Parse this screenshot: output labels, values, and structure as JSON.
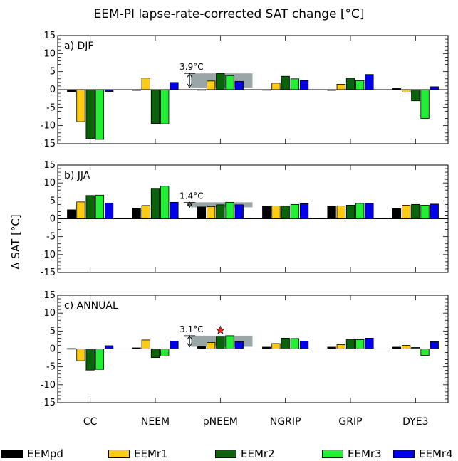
{
  "title": "EEM-PI lapse-rate-corrected SAT change [°C]",
  "ylabel": "Δ SAT [°C]",
  "colors": {
    "EEMpd": "#000000",
    "EEMr1": "#ffcc11",
    "EEMr2": "#0a620a",
    "EEMr3": "#22ee33",
    "EEMr4": "#0000ee",
    "shade": "#9aa5a8",
    "star": "#ee2222"
  },
  "legend": [
    {
      "name": "EEMpd",
      "color": "#000000"
    },
    {
      "name": "EEMr1",
      "color": "#ffcc11"
    },
    {
      "name": "EEMr2",
      "color": "#0a620a"
    },
    {
      "name": "EEMr3",
      "color": "#22ee33"
    },
    {
      "name": "EEMr4",
      "color": "#0000ee"
    }
  ],
  "chart_data": [
    {
      "type": "bar",
      "panel_label": "a) DJF",
      "categories": [
        "CC",
        "NEEM",
        "pNEEM",
        "NGRIP",
        "GRIP",
        "DYE3"
      ],
      "ylim": [
        -15,
        15
      ],
      "yticks": [
        -15,
        -10,
        -5,
        0,
        5,
        10,
        15
      ],
      "series": [
        {
          "name": "EEMpd",
          "values": [
            -0.6,
            -0.2,
            0.0,
            -0.1,
            -0.2,
            0.3
          ]
        },
        {
          "name": "EEMr1",
          "values": [
            -8.9,
            3.2,
            2.4,
            1.8,
            1.5,
            -0.7
          ]
        },
        {
          "name": "EEMr2",
          "values": [
            -13.6,
            -9.4,
            4.5,
            3.7,
            3.2,
            -3.1
          ]
        },
        {
          "name": "EEMr3",
          "values": [
            -13.8,
            -9.5,
            3.9,
            3.0,
            2.5,
            -8.0
          ]
        },
        {
          "name": "EEMr4",
          "values": [
            -0.5,
            2.0,
            2.3,
            2.5,
            4.2,
            0.8
          ]
        }
      ],
      "annotation": {
        "text": "3.9°C",
        "category": "pNEEM",
        "value": 3.9,
        "top": 4.5
      }
    },
    {
      "type": "bar",
      "panel_label": "b) JJA",
      "categories": [
        "CC",
        "NEEM",
        "pNEEM",
        "NGRIP",
        "GRIP",
        "DYE3"
      ],
      "ylim": [
        -15,
        15
      ],
      "yticks": [
        -15,
        -10,
        -5,
        0,
        5,
        10,
        15
      ],
      "series": [
        {
          "name": "EEMpd",
          "values": [
            2.5,
            3.0,
            3.3,
            3.4,
            3.6,
            2.8
          ]
        },
        {
          "name": "EEMr1",
          "values": [
            4.7,
            3.7,
            3.4,
            3.6,
            3.6,
            3.8
          ]
        },
        {
          "name": "EEMr2",
          "values": [
            6.5,
            8.5,
            3.9,
            3.6,
            3.8,
            4.0
          ]
        },
        {
          "name": "EEMr3",
          "values": [
            6.6,
            9.1,
            4.6,
            4.0,
            4.3,
            3.8
          ]
        },
        {
          "name": "EEMr4",
          "values": [
            4.4,
            4.6,
            3.9,
            4.2,
            4.3,
            4.1
          ]
        }
      ],
      "annotation": {
        "text": "1.4°C",
        "category": "pNEEM",
        "value": 1.4,
        "top": 4.6
      }
    },
    {
      "type": "bar",
      "panel_label": "c) ANNUAL",
      "categories": [
        "CC",
        "NEEM",
        "pNEEM",
        "NGRIP",
        "GRIP",
        "DYE3"
      ],
      "ylim": [
        -15,
        15
      ],
      "yticks": [
        -15,
        -10,
        -5,
        0,
        5,
        10,
        15
      ],
      "series": [
        {
          "name": "EEMpd",
          "values": [
            0.1,
            0.3,
            0.6,
            0.5,
            0.5,
            0.5
          ]
        },
        {
          "name": "EEMr1",
          "values": [
            -3.3,
            2.5,
            1.8,
            1.5,
            1.2,
            1.0
          ]
        },
        {
          "name": "EEMr2",
          "values": [
            -5.9,
            -2.4,
            3.5,
            3.0,
            2.7,
            0.4
          ]
        },
        {
          "name": "EEMr3",
          "values": [
            -5.7,
            -2.0,
            3.7,
            2.9,
            2.6,
            -1.8
          ]
        },
        {
          "name": "EEMr4",
          "values": [
            0.9,
            2.2,
            2.0,
            2.2,
            3.0,
            2.0
          ]
        }
      ],
      "annotation": {
        "text": "3.1°C",
        "category": "pNEEM",
        "value": 3.1,
        "top": 3.7
      },
      "star": {
        "category": "pNEEM",
        "series": "EEMr2",
        "value": 5.2
      }
    }
  ]
}
